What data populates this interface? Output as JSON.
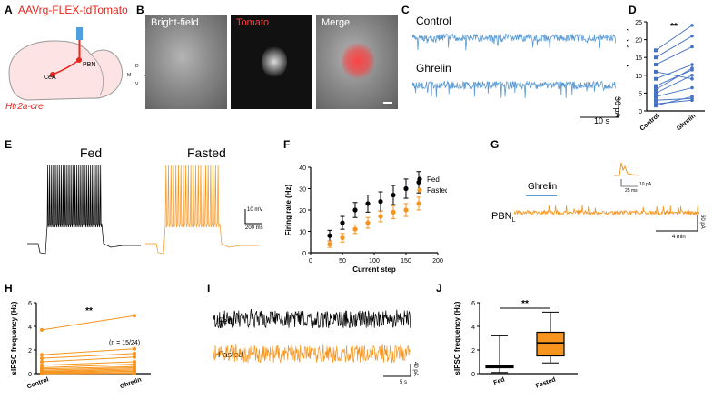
{
  "panels": {
    "A": "A",
    "B": "B",
    "C": "C",
    "D": "D",
    "E": "E",
    "F": "F",
    "G": "G",
    "H": "H",
    "I": "I",
    "J": "J"
  },
  "colors": {
    "orange": "#f7941d",
    "blue": "#5b9bd5",
    "traceBlue": "#5b9bd5",
    "black": "#000000",
    "red": "#e8251e"
  },
  "panelA": {
    "title": "AAVrg-FLEX-tdTomato",
    "region1": "CeA",
    "region2": "PBN",
    "mouse": "Htr2a-cre"
  },
  "panelB": {
    "labels": [
      "Bright-field",
      "Tomato",
      "Merge"
    ],
    "axes": {
      "d": "D",
      "v": "V",
      "m": "M",
      "l": "L"
    }
  },
  "panelC": {
    "traces": [
      "Control",
      "Ghrelin"
    ],
    "scale_y": "30 pA",
    "scale_x": "10 s"
  },
  "panelE": {
    "traces": [
      "Fed",
      "Fasted"
    ],
    "scale_y": "10 mV",
    "scale_x": "200 ms"
  },
  "panelG": {
    "drug": "Ghrelin",
    "trace_label": "PBN",
    "trace_sub": "L",
    "inset_x": "25 ms",
    "inset_y": "10 pA",
    "scale_y": "60 pA",
    "scale_x": "4 min"
  },
  "panelI": {
    "traces": [
      "Fed",
      "Fasted"
    ],
    "scale_y": "40 pA",
    "scale_x": "5 s"
  },
  "chart_data": [
    {
      "id": "D",
      "type": "scatter",
      "ylabel": "sEPSC frequency (Hz)",
      "ylim": [
        0,
        25
      ],
      "yticks": [
        0,
        5,
        10,
        15,
        20,
        25
      ],
      "categories": [
        "Control",
        "Ghrelin"
      ],
      "significance": "**",
      "pairs": [
        [
          1.5,
          4
        ],
        [
          2,
          3
        ],
        [
          3,
          3.5
        ],
        [
          4,
          6.5
        ],
        [
          5,
          10
        ],
        [
          6,
          12
        ],
        [
          7,
          11.5
        ],
        [
          9,
          13
        ],
        [
          11,
          9
        ],
        [
          13,
          18
        ],
        [
          15,
          21
        ],
        [
          17,
          24
        ]
      ]
    },
    {
      "id": "F",
      "type": "line",
      "xlabel": "Current step",
      "ylabel": "Firing rate (Hz)",
      "xlim": [
        0,
        200
      ],
      "ylim": [
        0,
        40
      ],
      "xticks": [
        0,
        50,
        100,
        150,
        200
      ],
      "yticks": [
        0,
        10,
        20,
        30,
        40
      ],
      "series": [
        {
          "name": "Fed",
          "color": "#000000",
          "x": [
            30,
            50,
            70,
            90,
            110,
            130,
            150,
            170
          ],
          "values": [
            8,
            14,
            20,
            23,
            24,
            27,
            30,
            33
          ],
          "err": [
            2.5,
            3,
            3.5,
            4,
            4.5,
            4.5,
            4.5,
            5
          ]
        },
        {
          "name": "Fasted",
          "color": "#f7941d",
          "x": [
            30,
            50,
            70,
            90,
            110,
            130,
            150,
            170
          ],
          "values": [
            4,
            7,
            11,
            14,
            17,
            19,
            20,
            23
          ],
          "err": [
            1.5,
            2,
            2,
            2.5,
            2.5,
            3,
            3,
            3
          ]
        }
      ]
    },
    {
      "id": "H",
      "type": "scatter",
      "ylabel": "sIPSC frequency (Hz)",
      "ylim": [
        0,
        6
      ],
      "yticks": [
        0,
        2,
        4,
        6
      ],
      "categories": [
        "Control",
        "Ghrelin"
      ],
      "significance": "**",
      "annotation": "(n = 15/24)",
      "pairs": [
        [
          3.7,
          4.9
        ],
        [
          1.6,
          2.1
        ],
        [
          1.3,
          1.7
        ],
        [
          1.0,
          1.4
        ],
        [
          0.7,
          1.0
        ],
        [
          0.5,
          0.8
        ],
        [
          0.4,
          0.6
        ],
        [
          0.3,
          0.5
        ],
        [
          0.2,
          0.4
        ],
        [
          0.15,
          0.3
        ],
        [
          0.1,
          0.2
        ],
        [
          0.05,
          0.1
        ],
        [
          0.05,
          0.05
        ],
        [
          0.02,
          0.05
        ],
        [
          0.0,
          0.02
        ]
      ]
    },
    {
      "id": "J",
      "type": "box",
      "ylabel": "sIPSC frequency (Hz)",
      "ylim": [
        0,
        6
      ],
      "yticks": [
        0,
        2,
        4,
        6
      ],
      "categories": [
        "Fed",
        "Fasted"
      ],
      "significance": "**",
      "boxes": [
        {
          "name": "Fed",
          "min": 0.1,
          "q1": 0.5,
          "median": 0.6,
          "q3": 0.7,
          "max": 3.2,
          "color": "#000000"
        },
        {
          "name": "Fasted",
          "min": 0.9,
          "q1": 1.5,
          "median": 2.6,
          "q3": 3.5,
          "max": 5.2,
          "color": "#f7941d"
        }
      ]
    }
  ]
}
